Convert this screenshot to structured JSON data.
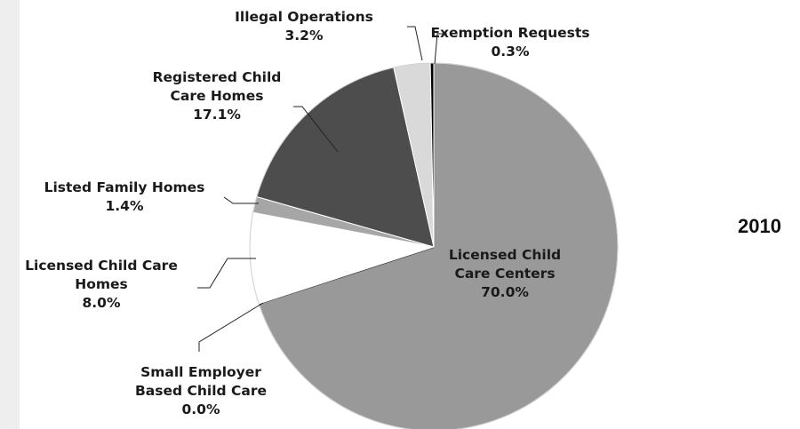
{
  "chart_data": {
    "type": "pie",
    "title": "2010",
    "slices": [
      {
        "label_lines": [
          "Licensed Child",
          "Care Centers"
        ],
        "value": 70.0,
        "pct_label": "70.0%",
        "color": "#999999"
      },
      {
        "label_lines": [
          "Small Employer",
          "Based Child Care"
        ],
        "value": 0.0,
        "pct_label": "0.0%",
        "color": "#1a1a1a"
      },
      {
        "label_lines": [
          "Licensed Child Care",
          "Homes"
        ],
        "value": 8.0,
        "pct_label": "8.0%",
        "color": "#ffffff"
      },
      {
        "label_lines": [
          "Listed Family Homes"
        ],
        "value": 1.4,
        "pct_label": "1.4%",
        "color": "#a6a6a6"
      },
      {
        "label_lines": [
          "Registered Child",
          "Care Homes"
        ],
        "value": 17.1,
        "pct_label": "17.1%",
        "color": "#4d4d4d"
      },
      {
        "label_lines": [
          "Illegal Operations"
        ],
        "value": 3.2,
        "pct_label": "3.2%",
        "color": "#d9d9d9"
      },
      {
        "label_lines": [
          "Exemption Requests"
        ],
        "value": 0.3,
        "pct_label": "0.3%",
        "color": "#000000"
      }
    ],
    "legend": "none"
  }
}
